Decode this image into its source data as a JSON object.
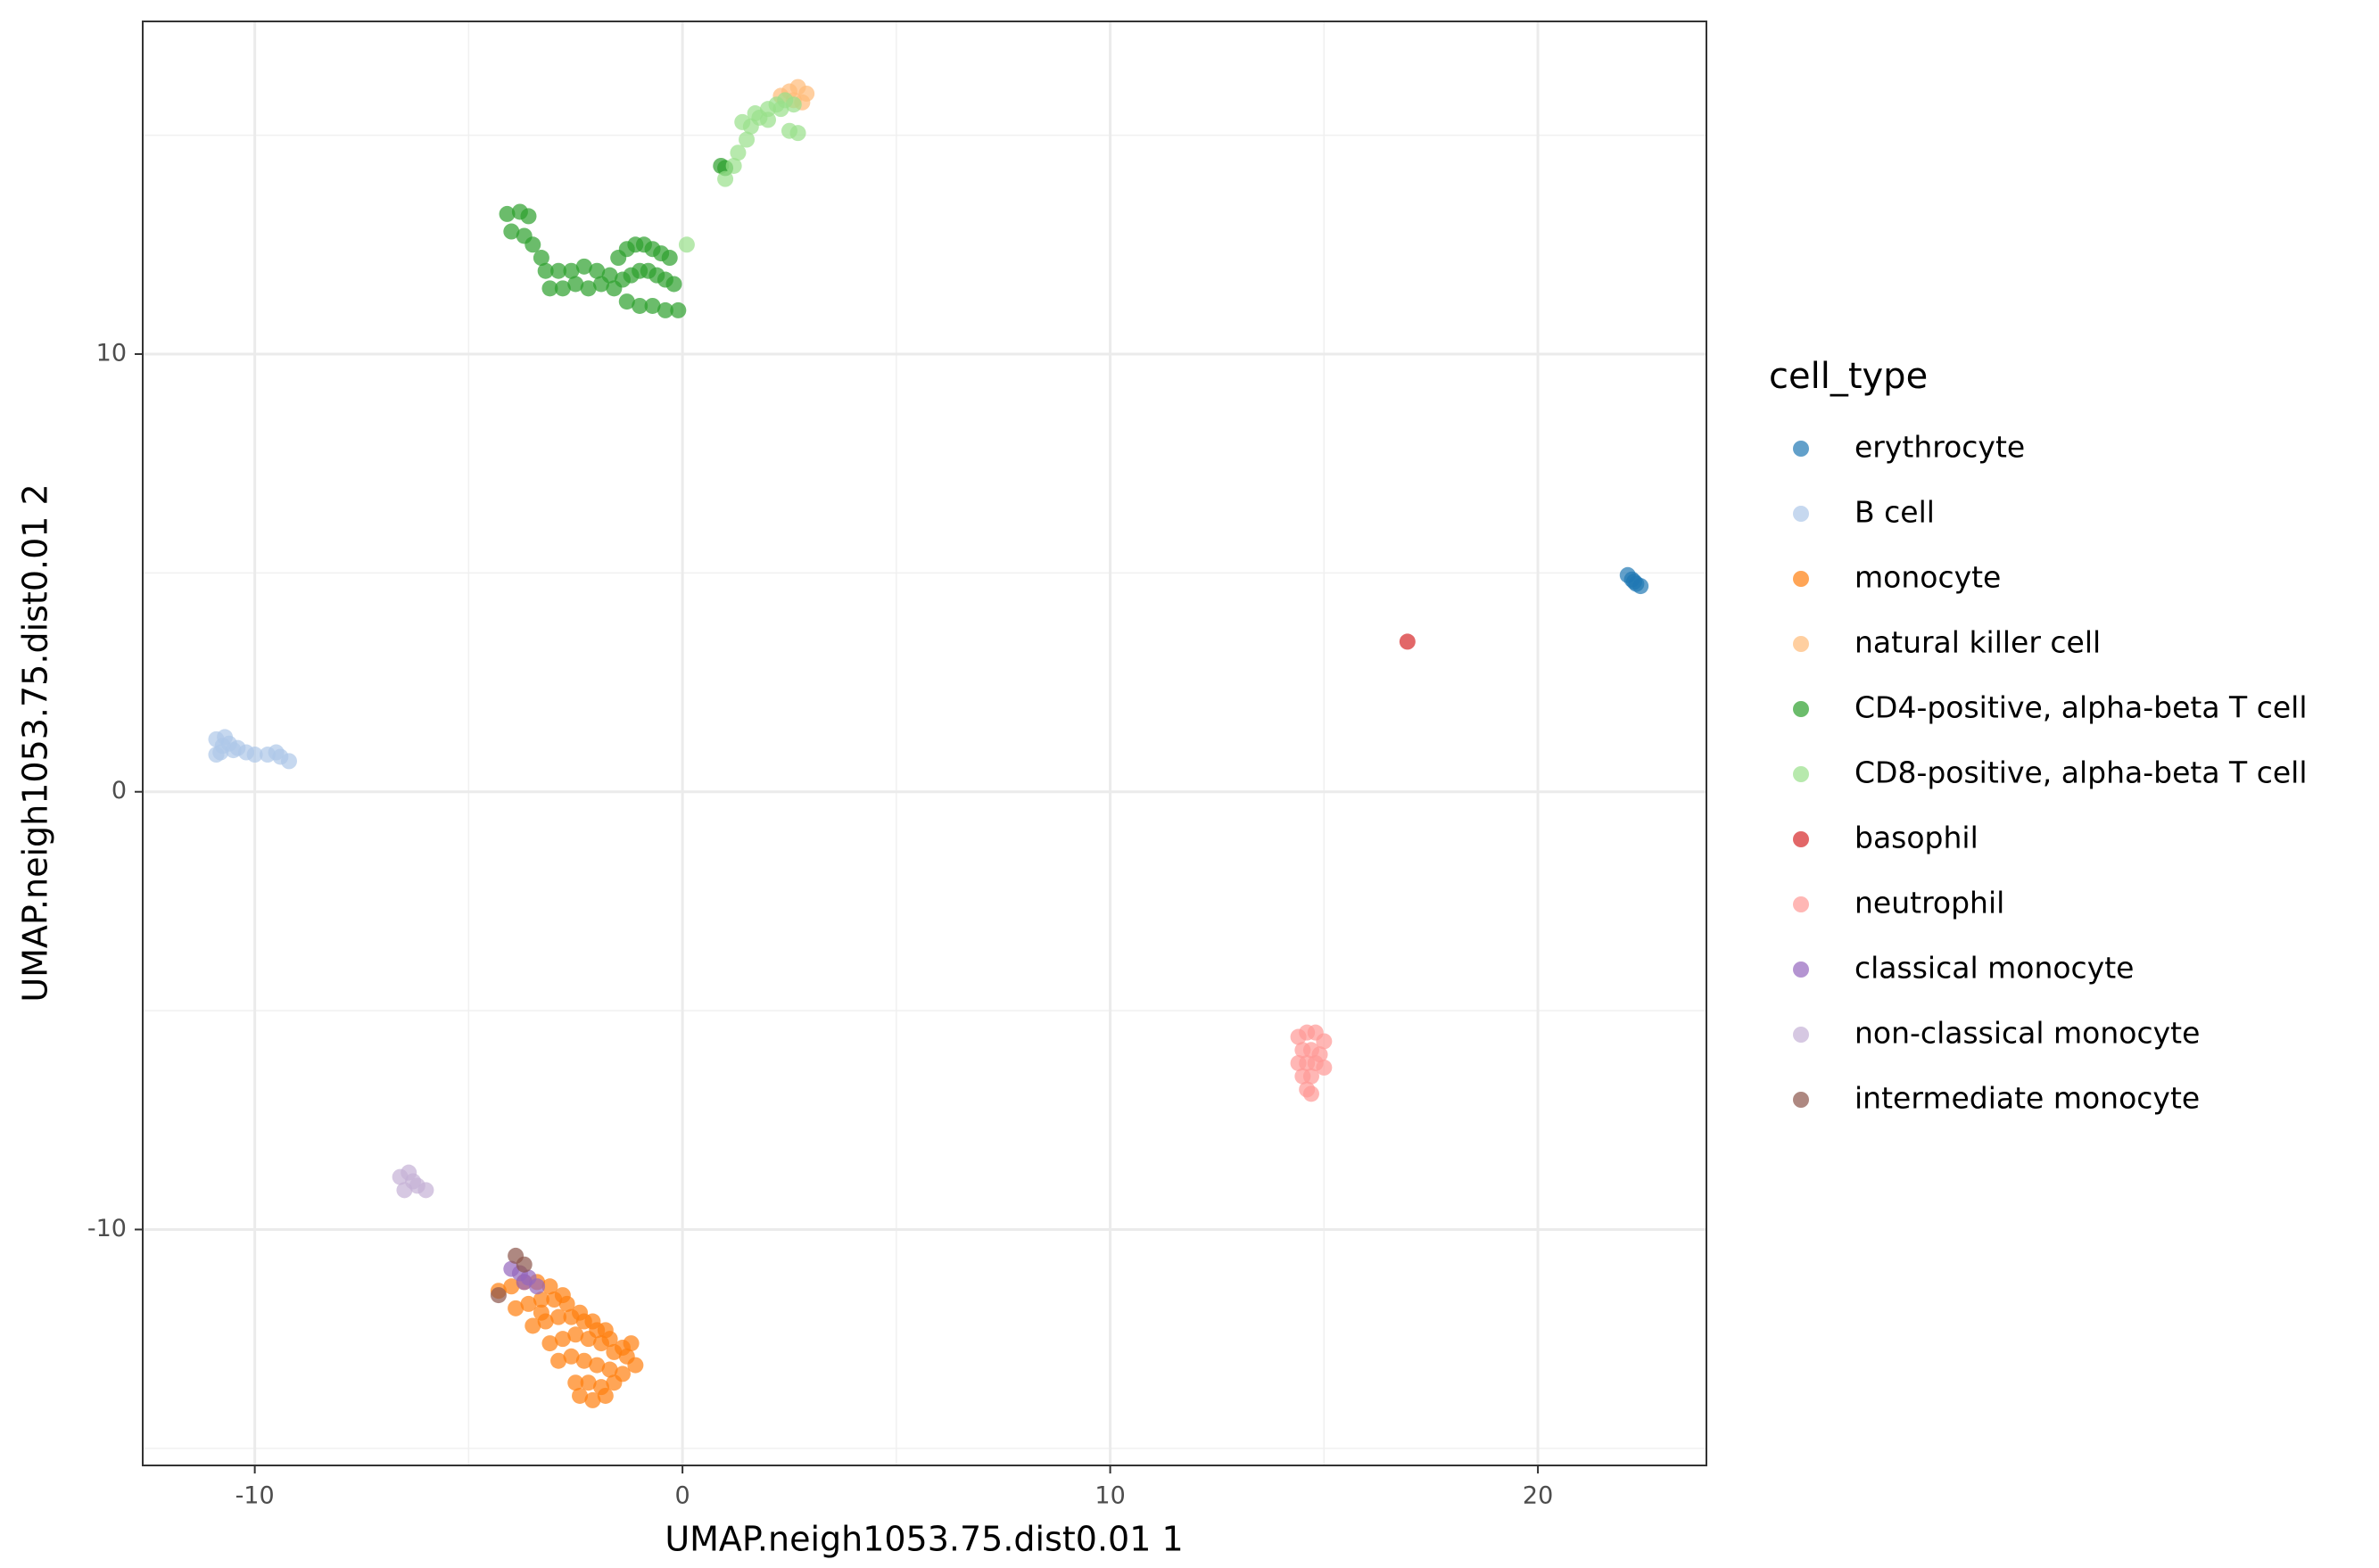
{
  "chart_data": {
    "type": "scatter",
    "x_label": "UMAP.neigh1053.75.dist0.01 1",
    "y_label": "UMAP.neigh1053.75.dist0.01 2",
    "legend_title": "cell_type",
    "legend_position": "right",
    "grid": true,
    "minor_grid": true,
    "xlim": [
      -12.62,
      23.94
    ],
    "ylim": [
      -15.39,
      17.6
    ],
    "xticks": [
      -10,
      0,
      10,
      20
    ],
    "yticks": [
      -10,
      0,
      10
    ],
    "series": [
      {
        "name": "erythrocyte",
        "color": "#1f77b4",
        "x": [
          22.1,
          22.2,
          22.3,
          22.4,
          22.25
        ],
        "y": [
          4.95,
          4.85,
          4.75,
          4.7,
          4.8
        ]
      },
      {
        "name": "B cell",
        "color": "#aec7e8",
        "x": [
          -10.9,
          -10.8,
          -10.6,
          -10.4,
          -10.2,
          -10.0,
          -9.7,
          -9.4,
          -9.2,
          -10.9,
          -10.7,
          -9.5,
          -10.75,
          -10.5
        ],
        "y": [
          1.2,
          0.9,
          1.1,
          1.0,
          0.9,
          0.85,
          0.85,
          0.8,
          0.7,
          0.85,
          1.25,
          0.9,
          1.05,
          0.95
        ]
      },
      {
        "name": "monocyte",
        "color": "#ff7f0e",
        "x": [
          -4.3,
          -4.0,
          -3.7,
          -3.4,
          -3.1,
          -2.8,
          -3.9,
          -3.6,
          -3.3,
          -3.0,
          -2.7,
          -2.4,
          -2.1,
          -1.8,
          -3.5,
          -3.2,
          -2.9,
          -2.6,
          -2.3,
          -2.0,
          -1.7,
          -1.4,
          -3.1,
          -2.8,
          -2.5,
          -2.2,
          -1.9,
          -1.6,
          -1.3,
          -1.1,
          -2.9,
          -2.6,
          -2.3,
          -2.0,
          -1.7,
          -1.4,
          -2.5,
          -2.2,
          -1.9,
          -1.6,
          -2.4,
          -2.1,
          -1.8,
          -3.3,
          -1.2
        ],
        "y": [
          -11.4,
          -11.3,
          -11.2,
          -11.2,
          -11.3,
          -11.5,
          -11.8,
          -11.7,
          -11.6,
          -11.6,
          -11.7,
          -11.9,
          -12.1,
          -12.3,
          -12.2,
          -12.1,
          -12.0,
          -12.0,
          -12.1,
          -12.3,
          -12.5,
          -12.7,
          -12.6,
          -12.5,
          -12.4,
          -12.5,
          -12.6,
          -12.8,
          -12.9,
          -13.1,
          -13.0,
          -12.9,
          -13.0,
          -13.1,
          -13.2,
          -13.3,
          -13.5,
          -13.5,
          -13.6,
          -13.5,
          -13.8,
          -13.9,
          -13.8,
          -11.9,
          -12.6
        ]
      },
      {
        "name": "natural killer cell",
        "color": "#ffbb78",
        "x": [
          2.3,
          2.5,
          2.7,
          2.9,
          2.6,
          2.8
        ],
        "y": [
          15.9,
          16.0,
          16.1,
          15.95,
          15.8,
          15.75
        ]
      },
      {
        "name": "CD4-positive, alpha-beta T cell",
        "color": "#2ca02c",
        "x": [
          -4.1,
          -3.8,
          -3.6,
          -4.0,
          -3.7,
          -3.5,
          -3.3,
          -3.2,
          -2.9,
          -2.6,
          -2.3,
          -2.0,
          -3.1,
          -2.8,
          -2.5,
          -2.2,
          -1.9,
          -1.7,
          -1.5,
          -1.3,
          -1.1,
          -0.9,
          -0.7,
          -0.5,
          -0.3,
          -1.6,
          -1.4,
          -1.2,
          -1.0,
          -0.8,
          -0.6,
          -0.4,
          -0.2,
          -1.3,
          -1.0,
          -0.7,
          -0.4,
          -0.1,
          0.9,
          1.0
        ],
        "y": [
          13.2,
          13.25,
          13.15,
          12.8,
          12.7,
          12.5,
          12.2,
          11.9,
          11.9,
          11.9,
          12.0,
          11.9,
          11.5,
          11.5,
          11.6,
          11.5,
          11.6,
          11.8,
          12.2,
          12.4,
          12.5,
          12.5,
          12.4,
          12.3,
          12.2,
          11.5,
          11.7,
          11.8,
          11.9,
          11.9,
          11.8,
          11.7,
          11.6,
          11.2,
          11.1,
          11.1,
          11.0,
          11.0,
          14.3,
          14.25
        ]
      },
      {
        "name": "CD8-positive, alpha-beta T cell",
        "color": "#98df8a",
        "x": [
          1.0,
          1.2,
          1.3,
          1.5,
          1.6,
          1.8,
          2.0,
          2.2,
          2.4,
          1.4,
          1.7,
          2.0,
          2.3,
          2.6,
          2.5,
          2.7,
          0.1
        ],
        "y": [
          14.0,
          14.3,
          14.6,
          14.9,
          15.2,
          15.4,
          15.6,
          15.7,
          15.8,
          15.3,
          15.5,
          15.35,
          15.6,
          15.7,
          15.1,
          15.05,
          12.5
        ]
      },
      {
        "name": "basophil",
        "color": "#d62728",
        "x": [
          16.95
        ],
        "y": [
          3.43
        ]
      },
      {
        "name": "neutrophil",
        "color": "#ff9896",
        "x": [
          14.4,
          14.6,
          14.8,
          15.0,
          14.5,
          14.7,
          14.9,
          14.4,
          14.6,
          14.8,
          15.0,
          14.5,
          14.7,
          14.6,
          14.7
        ],
        "y": [
          -5.6,
          -5.5,
          -5.5,
          -5.7,
          -5.9,
          -5.9,
          -6.0,
          -6.2,
          -6.2,
          -6.2,
          -6.3,
          -6.5,
          -6.5,
          -6.8,
          -6.9
        ]
      },
      {
        "name": "classical monocyte",
        "color": "#9467bd",
        "x": [
          -4.0,
          -3.8,
          -3.6,
          -3.4,
          -3.7
        ],
        "y": [
          -10.9,
          -11.0,
          -11.1,
          -11.3,
          -11.2
        ]
      },
      {
        "name": "non-classical monocyte",
        "color": "#c5b0d5",
        "x": [
          -6.6,
          -6.4,
          -6.2,
          -6.0,
          -6.5,
          -6.3
        ],
        "y": [
          -8.8,
          -8.7,
          -9.0,
          -9.1,
          -9.1,
          -8.9
        ]
      },
      {
        "name": "intermediate monocyte",
        "color": "#8c564b",
        "x": [
          -3.9,
          -4.3,
          -3.7
        ],
        "y": [
          -10.6,
          -11.5,
          -10.8
        ]
      }
    ]
  }
}
